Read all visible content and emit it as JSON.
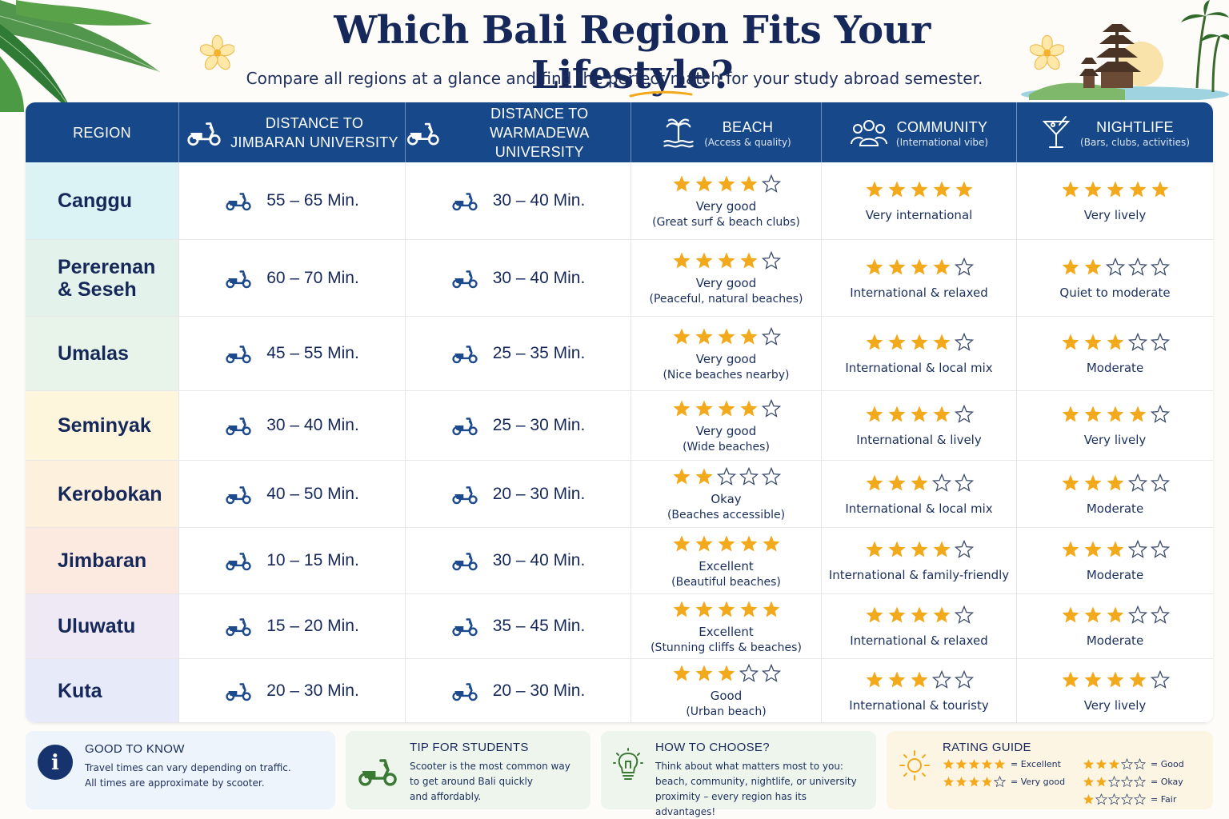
{
  "header": {
    "title": "Which Bali Region Fits Your Lifestyle?",
    "subtitle": "Compare all regions at a glance and find the perfect match for your study abroad semester."
  },
  "colors": {
    "header_bg": "#17498a",
    "star_gold": "#f2a91c",
    "title": "#16285a"
  },
  "columns": [
    {
      "main": "REGION",
      "sub": ""
    },
    {
      "main": "DISTANCE TO",
      "main2": "JIMBARAN UNIVERSITY",
      "icon": "scooter-icon"
    },
    {
      "main": "DISTANCE TO",
      "main2": "WARMADEWA UNIVERSITY",
      "icon": "scooter-icon"
    },
    {
      "main": "BEACH",
      "sub": "(Access & quality)",
      "icon": "palm-beach-icon"
    },
    {
      "main": "COMMUNITY",
      "sub": "(International vibe)",
      "icon": "people-icon"
    },
    {
      "main": "NIGHTLIFE",
      "sub": "(Bars, clubs, activities)",
      "icon": "cocktail-icon"
    }
  ],
  "rows": [
    {
      "region": "Canggu",
      "bg": "#dcf3f5",
      "jimbaran": "55 – 65 Min.",
      "warmadewa": "30 – 40 Min.",
      "beach_stars": 4,
      "beach_label": "Very good",
      "beach_note": "(Great surf & beach clubs)",
      "community_stars": 5,
      "community_label": "Very international",
      "nightlife_stars": 5,
      "nightlife_label": "Very lively"
    },
    {
      "region": "Pererenan & Seseh",
      "bg": "#e3f3ec",
      "jimbaran": "60 – 70 Min.",
      "warmadewa": "30 – 40 Min.",
      "beach_stars": 4,
      "beach_label": "Very good",
      "beach_note": "(Peaceful, natural beaches)",
      "community_stars": 4,
      "community_label": "International & relaxed",
      "nightlife_stars": 2,
      "nightlife_label": "Quiet to moderate"
    },
    {
      "region": "Umalas",
      "bg": "#e8f4ea",
      "jimbaran": "45 – 55 Min.",
      "warmadewa": "25 – 35 Min.",
      "beach_stars": 4,
      "beach_label": "Very good",
      "beach_note": "(Nice beaches nearby)",
      "community_stars": 4,
      "community_label": "International & local mix",
      "nightlife_stars": 3,
      "nightlife_label": "Moderate"
    },
    {
      "region": "Seminyak",
      "bg": "#fdf5dc",
      "jimbaran": "30 – 40 Min.",
      "warmadewa": "25 – 30 Min.",
      "beach_stars": 4,
      "beach_label": "Very good",
      "beach_note": "(Wide beaches)",
      "community_stars": 4,
      "community_label": "International & lively",
      "nightlife_stars": 4,
      "nightlife_label": "Very lively"
    },
    {
      "region": "Kerobokan",
      "bg": "#fdf0dc",
      "jimbaran": "40 – 50 Min.",
      "warmadewa": "20 – 30 Min.",
      "beach_stars": 2,
      "beach_label": "Okay",
      "beach_note": "(Beaches accessible)",
      "community_stars": 3,
      "community_label": "International & local mix",
      "nightlife_stars": 3,
      "nightlife_label": "Moderate"
    },
    {
      "region": "Jimbaran",
      "bg": "#fce9e0",
      "jimbaran": "10 – 15 Min.",
      "warmadewa": "30 – 40 Min.",
      "beach_stars": 5,
      "beach_label": "Excellent",
      "beach_note": "(Beautiful beaches)",
      "community_stars": 4,
      "community_label": "International & family-friendly",
      "nightlife_stars": 3,
      "nightlife_label": "Moderate"
    },
    {
      "region": "Uluwatu",
      "bg": "#efe9f6",
      "jimbaran": "15 – 20 Min.",
      "warmadewa": "35 – 45 Min.",
      "beach_stars": 5,
      "beach_label": "Excellent",
      "beach_note": "(Stunning cliffs & beaches)",
      "community_stars": 4,
      "community_label": "International & relaxed",
      "nightlife_stars": 3,
      "nightlife_label": "Moderate"
    },
    {
      "region": "Kuta",
      "bg": "#e7ebf9",
      "jimbaran": "20 – 30 Min.",
      "warmadewa": "20 – 30 Min.",
      "beach_stars": 3,
      "beach_label": "Good",
      "beach_note": "(Urban beach)",
      "community_stars": 3,
      "community_label": "International & touristy",
      "nightlife_stars": 4,
      "nightlife_label": "Very lively"
    }
  ],
  "footer": {
    "good_to_know": {
      "title": "GOOD TO KNOW",
      "line1": "Travel times can vary depending on traffic.",
      "line2": "All times are approximate by scooter.",
      "icon": "info-icon"
    },
    "tip": {
      "title": "TIP FOR STUDENTS",
      "line1": "Scooter is the most common way",
      "line2": "to get around Bali quickly",
      "line3": "and affordably.",
      "icon": "scooter-icon"
    },
    "how": {
      "title": "HOW TO CHOOSE?",
      "line1": "Think about what matters most to you:",
      "line2": "beach, community, nightlife, or university",
      "line3": "proximity – every region has its advantages!",
      "icon": "lightbulb-icon"
    },
    "guide": {
      "title": "RATING GUIDE",
      "icon": "sun-icon",
      "items": [
        {
          "stars": 5,
          "label": "= Excellent"
        },
        {
          "stars": 3,
          "label": "= Good"
        },
        {
          "stars": 4,
          "label": "= Very good"
        },
        {
          "stars": 2,
          "label": "= Okay"
        },
        {
          "stars": 0,
          "label": ""
        },
        {
          "stars": 1,
          "label": "= Fair"
        }
      ]
    }
  }
}
